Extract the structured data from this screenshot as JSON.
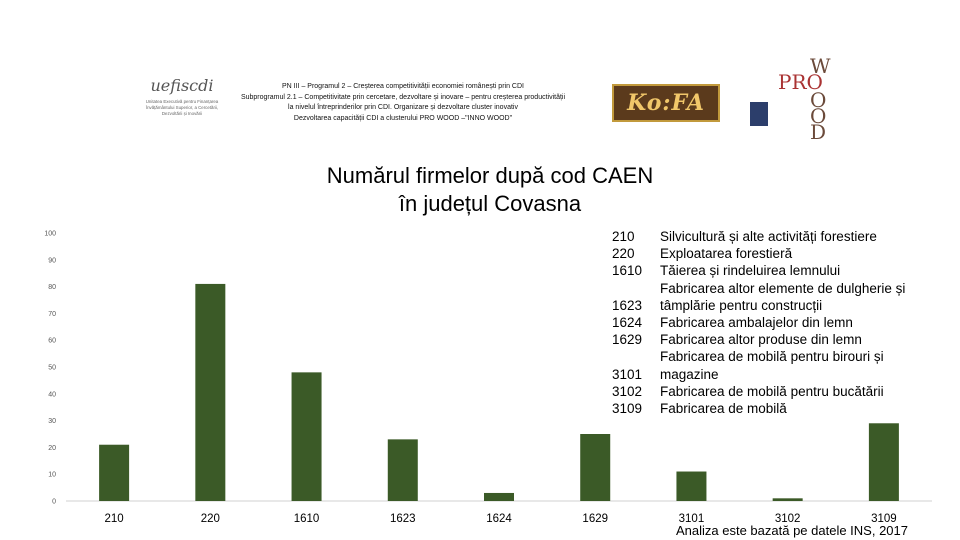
{
  "header": {
    "logo_left_brand": "uefiscdi",
    "logo_left_subtitle": "Unitatea Executivă pentru Finanțarea Învățământului Superior, a Cercetării, Dezvoltării și Inovării",
    "project_text": "PN III – Programul 2 – Creșterea competitivității economiei românești prin CDI\nSubprogramul 2.1 – Competitivitate prin cercetare, dezvoltare și inovare – pentru creșterea productivității la nivelul întreprinderilor prin CDI. Organizare și dezvoltare cluster inovativ\nDezvoltarea capacității CDI a clusterului PRO WOOD –\"INNO WOOD\"",
    "logo_middle_text": "Ko:FA",
    "logo_right_letters": [
      "W",
      "PRO",
      "O",
      "O",
      "D"
    ]
  },
  "chart_data": {
    "type": "bar",
    "title": "Numărul firmelor după cod CAEN în județul Covasna",
    "title_lines": [
      "Numărul firmelor după cod CAEN",
      "în județul Covasna"
    ],
    "categories": [
      "210",
      "220",
      "1610",
      "1623",
      "1624",
      "1629",
      "3101",
      "3102",
      "3109"
    ],
    "values": [
      21,
      81,
      48,
      23,
      3,
      25,
      11,
      1,
      29
    ],
    "ylim": [
      0,
      100
    ],
    "yticks": [
      0,
      10,
      20,
      30,
      40,
      50,
      60,
      70,
      80,
      90,
      100
    ],
    "xlabel": "",
    "ylabel": "",
    "grid": false,
    "bar_color": "#3b5a27",
    "legend": [
      {
        "code": "210",
        "desc": "Silvicultură și alte activități forestiere"
      },
      {
        "code": "220",
        "desc": "Exploatarea forestieră"
      },
      {
        "code": "1610",
        "desc": "Tăierea și rindeluirea lemnului"
      },
      {
        "code": "1623",
        "desc": "Fabricarea altor elemente de dulgherie și tâmplărie pentru construcții"
      },
      {
        "code": "1624",
        "desc": "Fabricarea ambalajelor din lemn"
      },
      {
        "code": "1629",
        "desc": "Fabricarea altor produse din lemn"
      },
      {
        "code": "3101",
        "desc": "Fabricarea de mobilă pentru birouri și magazine"
      },
      {
        "code": "3102",
        "desc": "Fabricarea de mobilă pentru bucătării"
      },
      {
        "code": "3109",
        "desc": "Fabricarea de mobilă"
      }
    ]
  },
  "footnote": "Analiza este bazată pe datele INS, 2017"
}
